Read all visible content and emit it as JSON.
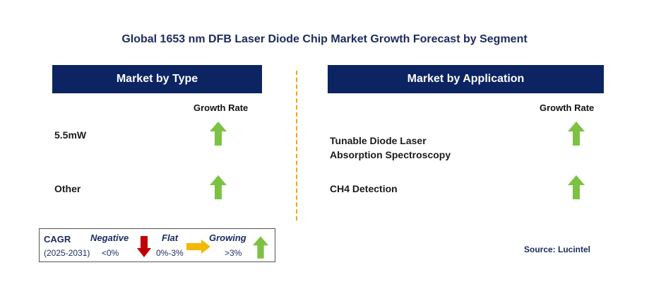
{
  "title": "Global 1653 nm DFB Laser Diode Chip Market Growth Forecast by Segment",
  "left_panel": {
    "header": "Market by Type",
    "growth_rate_label": "Growth Rate",
    "rows": [
      {
        "label": "5.5mW",
        "trend": "growing"
      },
      {
        "label": "Other",
        "trend": "growing"
      }
    ]
  },
  "right_panel": {
    "header": "Market by Application",
    "growth_rate_label": "Growth Rate",
    "rows": [
      {
        "label_line1": "Tunable Diode Laser",
        "label_line2": "Absorption Spectroscopy",
        "trend": "growing"
      },
      {
        "label_line1": "CH4 Detection",
        "label_line2": "",
        "trend": "growing"
      }
    ]
  },
  "legend": {
    "cagr_label": "CAGR",
    "period": "(2025-2031)",
    "negative": {
      "label": "Negative",
      "range": "<0%"
    },
    "flat": {
      "label": "Flat",
      "range": "0%-3%"
    },
    "growing": {
      "label": "Growing",
      "range": ">3%"
    }
  },
  "source": "Source: Lucintel",
  "colors": {
    "header_bg": "#0c2461",
    "growing_arrow": "#7dc142",
    "negative_arrow": "#c00000",
    "flat_arrow": "#f5b800",
    "divider": "#f0a31c"
  }
}
